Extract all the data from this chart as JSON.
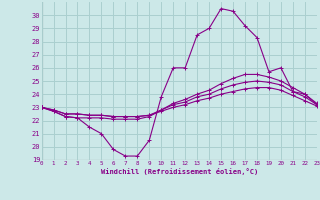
{
  "xlabel": "Windchill (Refroidissement éolien,°C)",
  "xlim": [
    0,
    23
  ],
  "ylim": [
    19,
    31
  ],
  "yticks": [
    19,
    20,
    21,
    22,
    23,
    24,
    25,
    26,
    27,
    28,
    29,
    30
  ],
  "xticks": [
    0,
    1,
    2,
    3,
    4,
    5,
    6,
    7,
    8,
    9,
    10,
    11,
    12,
    13,
    14,
    15,
    16,
    17,
    18,
    19,
    20,
    21,
    22,
    23
  ],
  "bg_color": "#cce8e8",
  "grid_color": "#aacfcf",
  "line_color": "#880088",
  "lines": [
    [
      23.0,
      22.7,
      22.3,
      22.2,
      21.5,
      21.0,
      19.8,
      19.3,
      19.3,
      20.5,
      23.8,
      26.0,
      26.0,
      28.5,
      29.0,
      30.5,
      30.3,
      29.2,
      28.3,
      25.7,
      26.0,
      24.2,
      24.0,
      23.2
    ],
    [
      23.0,
      22.7,
      22.3,
      22.2,
      22.2,
      22.2,
      22.1,
      22.1,
      22.1,
      22.3,
      22.8,
      23.3,
      23.6,
      24.0,
      24.3,
      24.8,
      25.2,
      25.5,
      25.5,
      25.3,
      25.0,
      24.5,
      24.0,
      23.3
    ],
    [
      23.0,
      22.8,
      22.5,
      22.5,
      22.4,
      22.4,
      22.3,
      22.3,
      22.3,
      22.4,
      22.8,
      23.2,
      23.4,
      23.8,
      24.0,
      24.4,
      24.7,
      24.9,
      25.0,
      24.9,
      24.7,
      24.2,
      23.8,
      23.2
    ],
    [
      23.0,
      22.8,
      22.5,
      22.5,
      22.4,
      22.4,
      22.3,
      22.3,
      22.3,
      22.4,
      22.7,
      23.0,
      23.2,
      23.5,
      23.7,
      24.0,
      24.2,
      24.4,
      24.5,
      24.5,
      24.3,
      23.9,
      23.5,
      23.1
    ]
  ]
}
